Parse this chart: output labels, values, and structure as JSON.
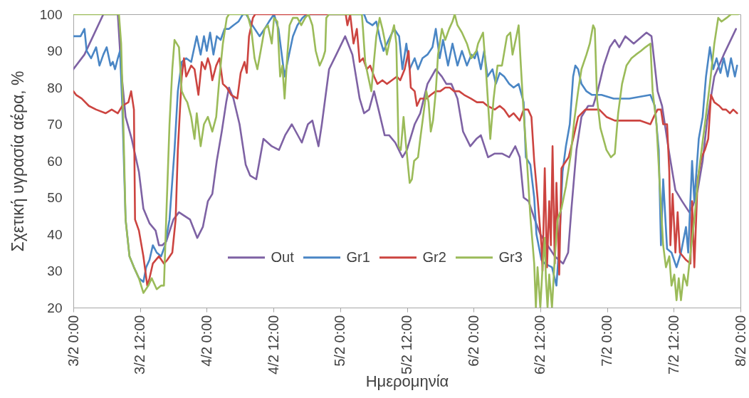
{
  "chart_data": {
    "type": "line",
    "xlabel": "Ημερομηνία",
    "ylabel": "Σχετική υγρασία αέρα, %",
    "xlim": [
      "--02-03T00:00",
      "--02-08T00:00"
    ],
    "xticks": [
      {
        "value": "--02-03T00:00",
        "label": "3/2 0:00"
      },
      {
        "value": "--02-03T12:00",
        "label": "3/2 12:00"
      },
      {
        "value": "--02-04T00:00",
        "label": "4/2 0:00"
      },
      {
        "value": "--02-04T12:00",
        "label": "4/2 12:00"
      },
      {
        "value": "--02-05T00:00",
        "label": "5/2 0:00"
      },
      {
        "value": "--02-05T12:00",
        "label": "5/2 12:00"
      },
      {
        "value": "--02-06T00:00",
        "label": "6/2 0:00"
      },
      {
        "value": "--02-06T12:00",
        "label": "6/2 12:00"
      },
      {
        "value": "--02-07T00:00",
        "label": "7/2 0:00"
      },
      {
        "value": "--02-07T12:00",
        "label": "7/2 12:00"
      },
      {
        "value": "--02-08T00:00",
        "label": "8/2 0:00"
      }
    ],
    "ylim": [
      20,
      100
    ],
    "yticks": [
      20,
      30,
      40,
      50,
      60,
      70,
      80,
      90,
      100
    ],
    "grid": false,
    "legend": "bottom",
    "line_style": "solid",
    "series": [
      {
        "name": "Out",
        "color": "#7e62a4",
        "x": [
          "--02-03T00:00",
          "--02-03T02:00",
          "--02-03T05:24",
          "--02-03T08:00",
          "--02-03T08:36",
          "--02-03T09:24",
          "--02-03T10:30",
          "--02-03T11:48",
          "--02-03T12:36",
          "--02-03T13:42",
          "--02-03T14:48",
          "--02-03T15:24",
          "--02-03T16:00",
          "--02-03T16:42",
          "--02-03T18:00",
          "--02-03T19:00",
          "--02-03T21:00",
          "--02-03T22:18",
          "--02-03T23:18",
          "--02-04T00:12",
          "--02-04T01:00",
          "--02-04T01:48",
          "--02-04T02:42",
          "--02-04T03:30",
          "--02-04T04:00",
          "--02-04T04:48",
          "--02-04T05:54",
          "--02-04T07:00",
          "--02-04T07:48",
          "--02-04T08:54",
          "--02-04T10:12",
          "--02-04T11:42",
          "--02-04T13:00",
          "--02-04T14:06",
          "--02-04T15:18",
          "--02-04T17:06",
          "--02-04T18:12",
          "--02-04T19:00",
          "--02-04T20:06",
          "--02-04T20:42",
          "--02-04T22:00",
          "--02-04T23:18",
          "--02-05T00:54",
          "--02-05T02:12",
          "--02-05T03:30",
          "--02-05T04:18",
          "--02-05T05:12",
          "--02-05T06:06",
          "--02-05T06:54",
          "--02-05T08:00",
          "--02-05T08:48",
          "--02-05T09:54",
          "--02-05T11:12",
          "--02-05T12:00",
          "--02-05T13:24",
          "--02-05T14:24",
          "--02-05T15:42",
          "--02-05T17:12",
          "--02-05T18:18",
          "--02-05T19:06",
          "--02-05T20:00",
          "--02-05T21:06",
          "--02-05T22:06",
          "--02-05T23:24",
          "--02-06T00:30",
          "--02-06T01:18",
          "--02-06T02:36",
          "--02-06T03:48",
          "--02-06T05:06",
          "--02-06T06:24",
          "--02-06T07:30",
          "--02-06T08:18",
          "--02-06T09:00",
          "--02-06T09:54",
          "--02-06T11:00",
          "--02-06T12:00",
          "--02-06T13:18",
          "--02-06T14:36",
          "--02-06T16:06",
          "--02-06T17:00",
          "--02-06T17:36",
          "--02-06T18:30",
          "--02-06T19:24",
          "--02-06T20:36",
          "--02-06T21:30",
          "--02-06T22:18",
          "--02-06T23:24",
          "--02-07T00:30",
          "--02-07T01:24",
          "--02-07T02:12",
          "--02-07T03:18",
          "--02-07T04:48",
          "--02-07T07:06",
          "--02-07T08:00",
          "--02-07T09:06",
          "--02-07T09:54",
          "--02-07T11:12",
          "--02-07T12:18",
          "--02-07T13:30",
          "--02-07T14:48",
          "--02-07T15:30",
          "--02-07T16:18",
          "--02-07T17:12",
          "--02-07T18:00",
          "--02-07T19:18",
          "--02-07T21:00",
          "--02-07T23:12"
        ],
        "values": [
          85,
          89,
          100,
          100,
          85,
          72,
          66,
          57,
          47,
          43,
          41,
          37,
          37,
          38,
          44,
          46,
          44,
          39,
          42,
          49,
          51,
          60,
          68,
          76,
          80,
          77,
          70,
          59,
          56,
          55,
          66,
          64,
          63,
          67,
          70,
          65,
          70,
          71,
          64,
          70,
          85,
          89,
          94,
          89,
          77,
          73,
          74,
          79,
          74,
          67,
          67,
          65,
          61,
          63,
          70,
          73,
          81,
          85,
          83,
          81,
          81,
          77,
          68,
          64,
          66,
          67,
          61,
          62,
          62,
          61,
          64,
          61,
          50,
          49,
          44,
          40,
          37,
          34,
          32,
          35,
          47,
          63,
          72,
          75,
          75,
          79,
          86,
          91,
          93,
          91,
          94,
          92,
          95,
          94,
          79,
          75,
          62,
          52,
          49,
          46,
          48,
          52,
          60,
          71,
          83,
          89,
          96
        ]
      },
      {
        "name": "Gr1",
        "color": "#4a86c5",
        "x": [
          "--02-03T00:00",
          "--02-03T01:18",
          "--02-03T02:00",
          "--02-03T02:24",
          "--02-03T03:12",
          "--02-03T04:06",
          "--02-03T04:42",
          "--02-03T05:24",
          "--02-03T06:00",
          "--02-03T06:42",
          "--02-03T07:06",
          "--02-03T07:30",
          "--02-03T08:00",
          "--02-03T08:24",
          "--02-03T08:48",
          "--02-03T09:24",
          "--02-03T10:06",
          "--02-03T10:54",
          "--02-03T11:48",
          "--02-03T12:36",
          "--02-03T13:06",
          "--02-03T13:42",
          "--02-03T14:18",
          "--02-03T15:00",
          "--02-03T15:48",
          "--02-03T16:30",
          "--02-03T17:18",
          "--02-03T18:12",
          "--02-03T18:48",
          "--02-03T19:30",
          "--02-03T20:18",
          "--02-03T21:12",
          "--02-03T22:12",
          "--02-03T22:54",
          "--02-03T23:30",
          "--02-04T00:00",
          "--02-04T00:36",
          "--02-04T01:12",
          "--02-04T01:48",
          "--02-04T02:30",
          "--02-04T03:12",
          "--02-04T04:00",
          "--02-04T04:48",
          "--02-04T05:42",
          "--02-04T06:30",
          "--02-04T07:06",
          "--02-04T08:12",
          "--02-04T09:30",
          "--02-04T10:24",
          "--02-04T11:12",
          "--02-04T12:06",
          "--02-04T12:54",
          "--02-04T14:00",
          "--02-04T14:48",
          "--02-04T15:30",
          "--02-04T16:18",
          "--02-04T17:12",
          "--02-04T18:00",
          "--02-04T23:36",
          "--02-05T04:18",
          "--02-05T04:48",
          "--02-05T05:48",
          "--02-05T06:30",
          "--02-05T07:12",
          "--02-05T07:48",
          "--02-05T08:42",
          "--02-05T09:42",
          "--02-05T10:36",
          "--02-05T11:12",
          "--02-05T11:54",
          "--02-05T12:30",
          "--02-05T13:24",
          "--02-05T14:00",
          "--02-05T14:48",
          "--02-05T15:42",
          "--02-05T16:36",
          "--02-05T17:12",
          "--02-05T17:54",
          "--02-05T18:30",
          "--02-05T19:24",
          "--02-05T20:12",
          "--02-05T21:06",
          "--02-05T21:54",
          "--02-05T22:48",
          "--02-05T23:36",
          "--02-06T00:12",
          "--02-06T00:36",
          "--02-06T01:18",
          "--02-06T01:54",
          "--02-06T02:30",
          "--02-06T03:24",
          "--02-06T04:00",
          "--02-06T04:42",
          "--02-06T05:30",
          "--02-06T06:24",
          "--02-06T07:12",
          "--02-06T08:06",
          "--02-06T09:00",
          "--02-06T09:24",
          "--02-06T10:12",
          "--02-06T10:54",
          "--02-06T11:18",
          "--02-06T12:12",
          "--02-06T12:48",
          "--02-06T14:06",
          "--02-06T14:54",
          "--02-06T15:24",
          "--02-06T16:00",
          "--02-06T16:36",
          "--02-06T17:18",
          "--02-06T17:54",
          "--02-06T18:18",
          "--02-06T18:48",
          "--02-06T19:24",
          "--02-06T20:18",
          "--02-06T21:18",
          "--02-06T23:00",
          "--02-07T01:12",
          "--02-07T04:00",
          "--02-07T07:48",
          "--02-07T08:36",
          "--02-07T09:18",
          "--02-07T09:42",
          "--02-07T10:06",
          "--02-07T10:48",
          "--02-07T11:36",
          "--02-07T12:30",
          "--02-07T13:18",
          "--02-07T14:12",
          "--02-07T14:36",
          "--02-07T15:18",
          "--02-07T15:42",
          "--02-07T16:30",
          "--02-07T17:12",
          "--02-07T17:48",
          "--02-07T18:30",
          "--02-07T19:06",
          "--02-07T19:42",
          "--02-07T20:24",
          "--02-07T21:00",
          "--02-07T21:42",
          "--02-07T22:18",
          "--02-07T23:00",
          "--02-07T23:24"
        ],
        "values": [
          94,
          94,
          96,
          90,
          88,
          91,
          86,
          89,
          91,
          86,
          87,
          85,
          88,
          90,
          75,
          44,
          34,
          31,
          28,
          27,
          31,
          33,
          37,
          35,
          34,
          37,
          44,
          63,
          79,
          87,
          88,
          87,
          94,
          89,
          94,
          90,
          95,
          89,
          94,
          93,
          96,
          96,
          97,
          98,
          100,
          100,
          97,
          94,
          96,
          98,
          100,
          96,
          83,
          89,
          94,
          97,
          99,
          100,
          100,
          100,
          98,
          97,
          98,
          93,
          90,
          93,
          96,
          94,
          85,
          92,
          85,
          88,
          85,
          88,
          89,
          91,
          96,
          88,
          93,
          86,
          92,
          86,
          90,
          86,
          89,
          88,
          90,
          85,
          90,
          83,
          85,
          81,
          84,
          83,
          81,
          80,
          81,
          76,
          61,
          59,
          50,
          40,
          33,
          32,
          31,
          26,
          37,
          57,
          64,
          70,
          83,
          86,
          85,
          81,
          79,
          78,
          78,
          77,
          77,
          78,
          75,
          63,
          37,
          55,
          36,
          35,
          31,
          35,
          42,
          35,
          60,
          49,
          66,
          72,
          83,
          91,
          85,
          88,
          84,
          88,
          83,
          88,
          83,
          86
        ]
      },
      {
        "name": "Gr2",
        "color": "#cc4440",
        "x": [
          "--02-03T00:00",
          "--02-03T00:30",
          "--02-03T01:30",
          "--02-03T02:48",
          "--02-03T04:06",
          "--02-03T05:48",
          "--02-03T06:54",
          "--02-03T08:00",
          "--02-03T08:48",
          "--02-03T09:54",
          "--02-03T10:24",
          "--02-03T10:54",
          "--02-03T11:06",
          "--02-03T11:48",
          "--02-03T12:36",
          "--02-03T13:18",
          "--02-03T13:42",
          "--02-03T14:18",
          "--02-03T15:24",
          "--02-03T16:18",
          "--02-03T16:54",
          "--02-03T17:48",
          "--02-03T18:24",
          "--02-03T18:48",
          "--02-03T19:30",
          "--02-03T19:54",
          "--02-03T20:18",
          "--02-03T21:12",
          "--02-03T21:48",
          "--02-03T22:30",
          "--02-03T23:06",
          "--02-03T23:42",
          "--02-04T00:12",
          "--02-04T00:36",
          "--02-04T01:00",
          "--02-04T01:42",
          "--02-04T02:18",
          "--02-04T02:54",
          "--02-04T03:36",
          "--02-04T04:24",
          "--02-04T05:30",
          "--02-04T06:06",
          "--02-04T06:48",
          "--02-04T07:12",
          "--02-04T07:36",
          "--02-04T08:18",
          "--02-04T08:42",
          "--02-05T01:00",
          "--02-05T01:18",
          "--02-05T01:48",
          "--02-05T02:24",
          "--02-05T03:00",
          "--02-05T03:30",
          "--02-05T04:06",
          "--02-05T04:48",
          "--02-05T05:24",
          "--02-05T06:06",
          "--02-05T06:42",
          "--02-05T07:36",
          "--02-05T08:24",
          "--02-05T09:18",
          "--02-05T10:12",
          "--02-05T10:48",
          "--02-05T11:36",
          "--02-05T12:18",
          "--02-05T12:42",
          "--02-05T13:24",
          "--02-05T13:48",
          "--02-05T14:24",
          "--02-05T15:30",
          "--02-05T16:18",
          "--02-05T17:12",
          "--02-05T18:00",
          "--02-05T18:54",
          "--02-05T19:42",
          "--02-05T20:30",
          "--02-05T21:24",
          "--02-05T22:18",
          "--02-05T23:30",
          "--02-06T00:36",
          "--02-06T01:42",
          "--02-06T02:30",
          "--02-06T03:48",
          "--02-06T04:42",
          "--02-06T05:30",
          "--02-06T06:24",
          "--02-06T07:12",
          "--02-06T08:18",
          "--02-06T09:00",
          "--02-06T09:48",
          "--02-06T10:24",
          "--02-06T10:54",
          "--02-06T11:30",
          "--02-06T12:12",
          "--02-06T12:24",
          "--02-06T12:48",
          "--02-06T13:12",
          "--02-06T13:36",
          "--02-06T13:54",
          "--02-06T14:12",
          "--02-06T14:36",
          "--02-06T14:54",
          "--02-06T15:24",
          "--02-06T15:48",
          "--02-06T16:12",
          "--02-06T17:06",
          "--02-06T17:54",
          "--02-06T18:48",
          "--02-06T20:06",
          "--02-06T21:18",
          "--02-06T22:36",
          "--02-06T23:54",
          "--02-07T01:24",
          "--02-07T04:00",
          "--02-07T05:54",
          "--02-07T07:48",
          "--02-07T08:24",
          "--02-07T09:06",
          "--02-07T09:42",
          "--02-07T10:06",
          "--02-07T10:48",
          "--02-07T11:12",
          "--02-07T11:24",
          "--02-07T11:48",
          "--02-07T12:18",
          "--02-07T12:42",
          "--02-07T13:06",
          "--02-07T14:12",
          "--02-07T15:00",
          "--02-07T15:18",
          "--02-07T15:42",
          "--02-07T16:18",
          "--02-07T17:00",
          "--02-07T17:36",
          "--02-07T18:12",
          "--02-07T18:42",
          "--02-07T19:18",
          "--02-07T20:12",
          "--02-07T20:48",
          "--02-07T21:24",
          "--02-07T22:06",
          "--02-07T22:42",
          "--02-07T23:24"
        ],
        "values": [
          79,
          78,
          77,
          75,
          74,
          73,
          74,
          73,
          75,
          76,
          79,
          74,
          44,
          41,
          34,
          26,
          28,
          32,
          34,
          32,
          33,
          35,
          44,
          63,
          83,
          88,
          83,
          86,
          85,
          78,
          87,
          85,
          88,
          86,
          82,
          86,
          88,
          81,
          80,
          78,
          77,
          84,
          87,
          84,
          94,
          99,
          100,
          100,
          97,
          100,
          92,
          96,
          87,
          88,
          85,
          86,
          83,
          81,
          82,
          81,
          82,
          83,
          82,
          85,
          90,
          80,
          79,
          75,
          77,
          77,
          78,
          79,
          79,
          80,
          80,
          79,
          79,
          78,
          77,
          76,
          76,
          75,
          74,
          75,
          74,
          72,
          73,
          71,
          74,
          74,
          72,
          60,
          50,
          37,
          30,
          58,
          31,
          49,
          37,
          64,
          32,
          54,
          29,
          58,
          59,
          61,
          66,
          72,
          74,
          74,
          74,
          72,
          71,
          71,
          71,
          70,
          72,
          74,
          74,
          70,
          70,
          57,
          37,
          51,
          35,
          46,
          35,
          33,
          32,
          49,
          31,
          55,
          61,
          63,
          66,
          78,
          76,
          75,
          74,
          74,
          73,
          74,
          73
        ]
      },
      {
        "name": "Gr3",
        "color": "#9bbb59",
        "x": [
          "--02-03T00:00",
          "--02-03T08:12",
          "--02-03T08:36",
          "--02-03T09:00",
          "--02-03T09:24",
          "--02-03T10:06",
          "--02-03T10:54",
          "--02-03T11:48",
          "--02-03T12:36",
          "--02-03T13:30",
          "--02-03T14:06",
          "--02-03T15:00",
          "--02-03T15:48",
          "--02-03T16:18",
          "--02-03T16:42",
          "--02-03T17:18",
          "--02-03T17:48",
          "--02-03T18:12",
          "--02-03T19:00",
          "--02-03T19:30",
          "--02-03T20:06",
          "--02-03T20:30",
          "--02-03T21:12",
          "--02-03T21:48",
          "--02-03T22:12",
          "--02-03T22:54",
          "--02-03T23:30",
          "--02-04T00:12",
          "--02-04T01:00",
          "--02-04T01:42",
          "--02-04T02:18",
          "--02-04T02:54",
          "--02-04T03:36",
          "--02-04T04:00",
          "--02-04T07:18",
          "--02-04T08:00",
          "--02-04T08:36",
          "--02-04T09:06",
          "--02-04T09:42",
          "--02-04T10:24",
          "--02-04T11:00",
          "--02-04T11:42",
          "--02-04T12:06",
          "--02-04T12:42",
          "--02-04T13:12",
          "--02-04T13:36",
          "--02-04T14:00",
          "--02-04T14:30",
          "--02-04T14:54",
          "--02-04T15:30",
          "--02-04T16:18",
          "--02-04T17:00",
          "--02-04T17:42",
          "--02-04T18:18",
          "--02-04T19:00",
          "--02-04T19:36",
          "--02-04T20:18",
          "--02-04T20:54",
          "--02-04T21:18",
          "--02-04T21:30",
          "--02-04T22:00",
          "--02-05T03:54",
          "--02-05T04:06",
          "--02-05T04:30",
          "--02-05T04:54",
          "--02-05T05:36",
          "--02-05T06:00",
          "--02-05T06:30",
          "--02-05T07:06",
          "--02-05T07:36",
          "--02-05T08:00",
          "--02-05T08:24",
          "--02-05T08:48",
          "--02-05T09:42",
          "--02-05T10:06",
          "--02-05T10:30",
          "--02-05T10:54",
          "--02-05T11:24",
          "--02-05T11:48",
          "--02-05T12:30",
          "--02-05T12:54",
          "--02-05T13:18",
          "--02-05T14:00",
          "--02-05T14:24",
          "--02-05T15:00",
          "--02-05T15:30",
          "--02-05T15:54",
          "--02-05T16:18",
          "--02-05T16:42",
          "--02-05T17:12",
          "--02-05T17:36",
          "--02-05T18:18",
          "--02-05T18:54",
          "--02-05T19:36",
          "--02-05T20:12",
          "--02-05T20:36",
          "--02-05T21:06",
          "--02-05T21:54",
          "--02-05T22:48",
          "--02-05T23:36",
          "--02-06T00:30",
          "--02-06T00:48",
          "--02-06T01:42",
          "--02-06T02:18",
          "--02-06T03:00",
          "--02-06T03:36",
          "--02-06T04:18",
          "--02-06T05:06",
          "--02-06T06:00",
          "--02-06T06:36",
          "--02-06T07:00",
          "--02-06T07:42",
          "--02-06T08:06",
          "--02-06T08:30",
          "--02-06T09:00",
          "--02-06T09:36",
          "--02-06T10:12",
          "--02-06T10:54",
          "--02-06T11:12",
          "--02-06T11:30",
          "--02-06T12:00",
          "--02-06T12:24",
          "--02-06T12:48",
          "--02-06T13:00",
          "--02-06T13:18",
          "--02-06T13:36",
          "--02-06T14:06",
          "--02-06T14:30",
          "--02-06T15:06",
          "--02-06T15:48",
          "--02-06T16:36",
          "--02-06T17:30",
          "--02-06T18:06",
          "--02-06T18:48",
          "--02-06T19:24",
          "--02-06T20:18",
          "--02-06T20:54",
          "--02-06T21:30",
          "--02-06T21:48",
          "--02-06T22:12",
          "--02-06T22:48",
          "--02-06T23:54",
          "--02-07T00:42",
          "--02-07T01:24",
          "--02-07T02:00",
          "--02-07T02:42",
          "--02-07T03:30",
          "--02-07T04:24",
          "--02-07T05:12",
          "--02-07T06:06",
          "--02-07T06:54",
          "--02-07T07:48",
          "--02-07T08:12",
          "--02-07T08:54",
          "--02-07T09:30",
          "--02-07T10:06",
          "--02-07T10:36",
          "--02-07T11:12",
          "--02-07T11:36",
          "--02-07T12:06",
          "--02-07T12:30",
          "--02-07T12:54",
          "--02-07T13:18",
          "--02-07T13:48",
          "--02-07T14:24",
          "--02-07T14:48",
          "--02-07T15:42",
          "--02-07T16:30",
          "--02-07T17:36",
          "--02-07T18:30",
          "--02-07T19:18",
          "--02-07T20:00",
          "--02-07T20:36",
          "--02-07T21:30",
          "--02-07T22:18",
          "--02-07T23:36"
        ],
        "values": [
          100,
          100,
          92,
          70,
          44,
          34,
          31,
          28,
          24,
          26,
          28,
          25,
          26,
          26,
          44,
          70,
          85,
          93,
          91,
          79,
          77,
          76,
          72,
          66,
          73,
          64,
          70,
          72,
          68,
          72,
          83,
          92,
          99,
          100,
          100,
          96,
          88,
          85,
          90,
          96,
          97,
          92,
          99,
          98,
          83,
          86,
          77,
          89,
          97,
          99,
          99,
          97,
          99,
          100,
          97,
          90,
          86,
          88,
          90,
          99,
          100,
          100,
          96,
          87,
          84,
          79,
          86,
          94,
          99,
          96,
          93,
          89,
          92,
          97,
          92,
          64,
          63,
          72,
          65,
          54,
          55,
          60,
          61,
          66,
          73,
          79,
          76,
          68,
          71,
          79,
          89,
          96,
          93,
          96,
          98,
          100,
          97,
          95,
          92,
          88,
          90,
          92,
          95,
          83,
          66,
          77,
          86,
          86,
          94,
          95,
          89,
          94,
          97,
          86,
          73,
          60,
          45,
          32,
          20,
          31,
          20,
          31,
          39,
          28,
          20,
          29,
          20,
          31,
          44,
          47,
          53,
          62,
          71,
          79,
          85,
          89,
          92,
          97,
          96,
          77,
          69,
          63,
          61,
          62,
          73,
          81,
          86,
          88,
          89,
          90,
          91,
          92,
          79,
          70,
          53,
          37,
          31,
          34,
          26,
          29,
          22,
          28,
          22,
          29,
          26,
          32,
          44,
          57,
          70,
          81,
          92,
          99,
          98,
          99,
          100,
          100
        ]
      }
    ]
  }
}
